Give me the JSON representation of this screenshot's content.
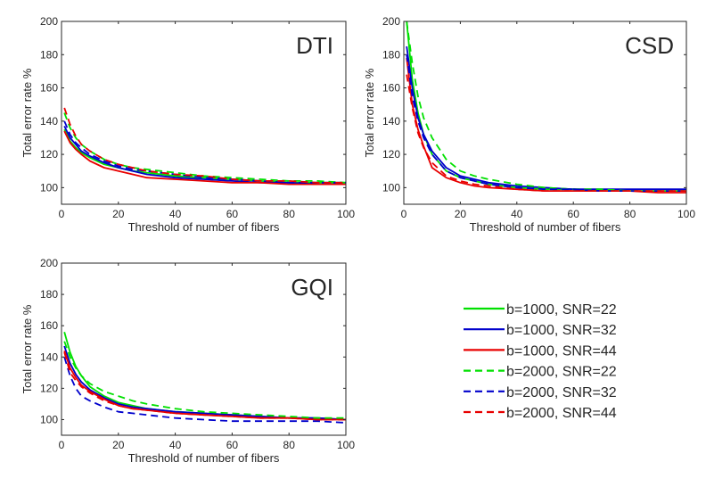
{
  "chart_data": [
    {
      "type": "line",
      "title": "DTI",
      "xlabel": "Threshold of number of fibers",
      "ylabel": "Total error rate %",
      "xlim": [
        0,
        100
      ],
      "ylim": [
        90,
        200
      ],
      "xticks": [
        0,
        20,
        40,
        60,
        80,
        100
      ],
      "yticks": [
        100,
        120,
        140,
        160,
        180,
        200
      ],
      "x": [
        1,
        3,
        5,
        7,
        10,
        15,
        20,
        25,
        30,
        40,
        50,
        60,
        70,
        80,
        90,
        100
      ],
      "series": [
        {
          "name": "b=1000, SNR=22",
          "values": [
            135,
            128,
            124,
            121,
            118,
            114,
            112,
            110,
            109,
            107,
            106,
            105,
            104,
            103,
            103,
            103
          ]
        },
        {
          "name": "b=1000, SNR=32",
          "values": [
            137,
            130,
            126,
            122,
            119,
            115,
            112,
            110,
            108,
            106,
            105,
            104,
            103,
            103,
            102,
            102
          ]
        },
        {
          "name": "b=1000, SNR=44",
          "values": [
            134,
            127,
            123,
            120,
            116,
            112,
            110,
            108,
            106,
            105,
            104,
            103,
            103,
            102,
            102,
            102
          ]
        },
        {
          "name": "b=2000, SNR=22",
          "values": [
            145,
            136,
            130,
            126,
            122,
            117,
            114,
            112,
            111,
            109,
            107,
            106,
            105,
            104,
            104,
            103
          ]
        },
        {
          "name": "b=2000, SNR=32",
          "values": [
            140,
            132,
            127,
            124,
            120,
            116,
            113,
            111,
            110,
            108,
            106,
            105,
            104,
            103,
            103,
            103
          ]
        },
        {
          "name": "b=2000, SNR=44",
          "values": [
            148,
            138,
            131,
            126,
            122,
            117,
            114,
            112,
            110,
            108,
            107,
            105,
            104,
            104,
            103,
            103
          ]
        }
      ]
    },
    {
      "type": "line",
      "title": "CSD",
      "xlabel": "Threshold of number of fibers",
      "ylabel": "Total error rate %",
      "xlim": [
        0,
        100
      ],
      "ylim": [
        90,
        200
      ],
      "xticks": [
        0,
        20,
        40,
        60,
        80,
        100
      ],
      "yticks": [
        100,
        120,
        140,
        160,
        180,
        200
      ],
      "x": [
        1,
        3,
        5,
        7,
        10,
        15,
        20,
        25,
        30,
        40,
        50,
        60,
        70,
        80,
        90,
        100
      ],
      "series": [
        {
          "name": "b=1000, SNR=22",
          "values": [
            200,
            165,
            145,
            132,
            120,
            110,
            106,
            104,
            102,
            100,
            99,
            99,
            98,
            98,
            98,
            98
          ]
        },
        {
          "name": "b=1000, SNR=32",
          "values": [
            185,
            160,
            142,
            132,
            122,
            112,
            107,
            105,
            103,
            101,
            100,
            99,
            99,
            99,
            99,
            99
          ]
        },
        {
          "name": "b=1000, SNR=44",
          "values": [
            178,
            150,
            135,
            125,
            112,
            106,
            103,
            101,
            100,
            99,
            98,
            98,
            98,
            98,
            97,
            97
          ]
        },
        {
          "name": "b=2000, SNR=22",
          "values": [
            200,
            175,
            155,
            142,
            130,
            117,
            110,
            107,
            105,
            102,
            100,
            99,
            99,
            98,
            98,
            98
          ]
        },
        {
          "name": "b=2000, SNR=32",
          "values": [
            180,
            155,
            140,
            130,
            120,
            110,
            106,
            104,
            102,
            100,
            99,
            99,
            98,
            98,
            98,
            98
          ]
        },
        {
          "name": "b=2000, SNR=44",
          "values": [
            168,
            148,
            133,
            124,
            115,
            107,
            104,
            102,
            101,
            99,
            98,
            98,
            98,
            98,
            98,
            98
          ]
        }
      ]
    },
    {
      "type": "line",
      "title": "GQI",
      "xlabel": "Threshold of number of fibers",
      "ylabel": "Total error rate %",
      "xlim": [
        0,
        100
      ],
      "ylim": [
        90,
        200
      ],
      "xticks": [
        0,
        20,
        40,
        60,
        80,
        100
      ],
      "yticks": [
        100,
        120,
        140,
        160,
        180,
        200
      ],
      "x": [
        1,
        3,
        5,
        7,
        10,
        15,
        20,
        25,
        30,
        40,
        50,
        60,
        70,
        80,
        90,
        100
      ],
      "series": [
        {
          "name": "b=1000, SNR=22",
          "values": [
            156,
            143,
            134,
            128,
            121,
            115,
            111,
            109,
            107,
            105,
            104,
            103,
            102,
            101,
            101,
            100
          ]
        },
        {
          "name": "b=1000, SNR=32",
          "values": [
            147,
            136,
            129,
            124,
            119,
            114,
            110,
            108,
            107,
            105,
            104,
            103,
            102,
            101,
            101,
            100
          ]
        },
        {
          "name": "b=1000, SNR=44",
          "values": [
            144,
            133,
            127,
            122,
            118,
            113,
            109,
            107,
            106,
            104,
            103,
            102,
            101,
            101,
            100,
            100
          ]
        },
        {
          "name": "b=2000, SNR=22",
          "values": [
            150,
            140,
            133,
            128,
            123,
            118,
            115,
            112,
            110,
            107,
            105,
            104,
            103,
            102,
            101,
            101
          ]
        },
        {
          "name": "b=2000, SNR=32",
          "values": [
            140,
            128,
            120,
            115,
            112,
            108,
            105,
            104,
            103,
            101,
            100,
            99,
            99,
            99,
            99,
            98
          ]
        },
        {
          "name": "b=2000, SNR=44",
          "values": [
            143,
            130,
            125,
            121,
            117,
            112,
            109,
            107,
            106,
            104,
            103,
            102,
            101,
            101,
            100,
            100
          ]
        }
      ]
    }
  ],
  "legend": {
    "entries": [
      {
        "label": "b=1000, SNR=22",
        "color": "#00e000",
        "style": "solid"
      },
      {
        "label": "b=1000, SNR=32",
        "color": "#0000cc",
        "style": "solid"
      },
      {
        "label": "b=1000, SNR=44",
        "color": "#e80000",
        "style": "solid"
      },
      {
        "label": "b=2000, SNR=22",
        "color": "#00e000",
        "style": "dashed"
      },
      {
        "label": "b=2000, SNR=32",
        "color": "#0000cc",
        "style": "dashed"
      },
      {
        "label": "b=2000, SNR=44",
        "color": "#e80000",
        "style": "dashed"
      }
    ]
  }
}
